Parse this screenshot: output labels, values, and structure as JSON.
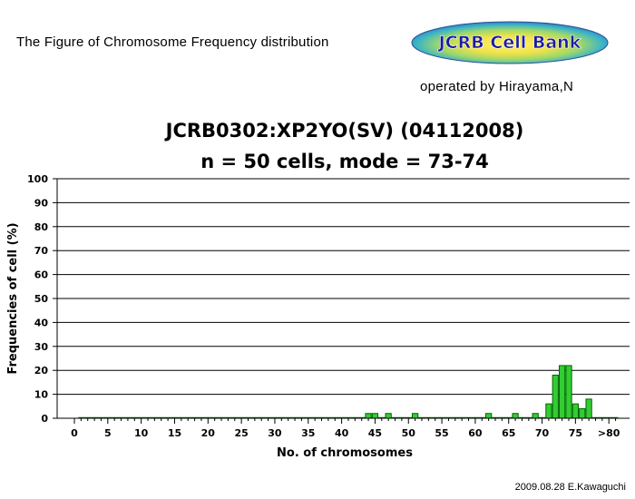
{
  "header": {
    "title": "The Figure of Chromosome Frequency distribution",
    "logo_text": "JCRB Cell Bank",
    "operator": "operated by Hirayama,N"
  },
  "footer": {
    "credit": "2009.08.28 E.Kawaguchi"
  },
  "colors": {
    "bar_fill": "#33cc33",
    "bar_stroke": "#006600",
    "grid": "#000000",
    "logo_text": "#1a1aa0"
  },
  "chart_data": {
    "type": "bar",
    "title": "JCRB0302:XP2YO(SV) (04112008)",
    "subtitle": "n = 50 cells, mode = 73-74",
    "xlabel": "No. of chromosomes",
    "ylabel": "Frequencies of cell (%)",
    "ylim": [
      0,
      100
    ],
    "yticks": [
      0,
      10,
      20,
      30,
      40,
      50,
      60,
      70,
      80,
      90,
      100
    ],
    "xlim": [
      0,
      81
    ],
    "xtick_labels": [
      "0",
      "5",
      "10",
      "15",
      "20",
      "25",
      "30",
      "35",
      "40",
      "45",
      "50",
      "55",
      "60",
      "65",
      "70",
      "75",
      ">80"
    ],
    "grid": true,
    "bars": [
      {
        "x": 44,
        "value": 2
      },
      {
        "x": 45,
        "value": 2
      },
      {
        "x": 47,
        "value": 2
      },
      {
        "x": 51,
        "value": 2
      },
      {
        "x": 62,
        "value": 2
      },
      {
        "x": 66,
        "value": 2
      },
      {
        "x": 69,
        "value": 2
      },
      {
        "x": 71,
        "value": 6
      },
      {
        "x": 72,
        "value": 18
      },
      {
        "x": 73,
        "value": 22
      },
      {
        "x": 74,
        "value": 22
      },
      {
        "x": 75,
        "value": 6
      },
      {
        "x": 76,
        "value": 4
      },
      {
        "x": 77,
        "value": 8
      }
    ]
  }
}
